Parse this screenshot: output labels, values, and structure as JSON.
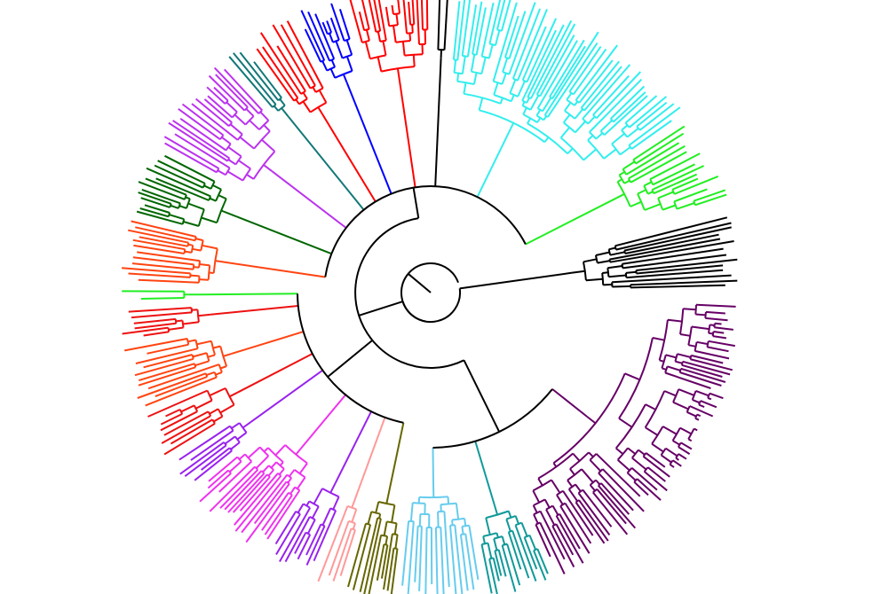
{
  "diagram": {
    "type": "circular-phylogenetic-tree",
    "labels_shown": false,
    "background": "#ffffff",
    "clades": [
      {
        "name": "root-stub",
        "color": "#000000"
      },
      {
        "name": "clade-red-top",
        "color": "#ff0000"
      },
      {
        "name": "clade-blue",
        "color": "#0000ff"
      },
      {
        "name": "clade-cyan",
        "color": "#33eeee"
      },
      {
        "name": "clade-bright-green",
        "color": "#22ee22"
      },
      {
        "name": "clade-black-outgroup",
        "color": "#000000"
      },
      {
        "name": "clade-dark-purple",
        "color": "#660066"
      },
      {
        "name": "clade-teal",
        "color": "#119999"
      },
      {
        "name": "clade-light-blue",
        "color": "#66ccee"
      },
      {
        "name": "clade-olive",
        "color": "#666600"
      },
      {
        "name": "clade-pink",
        "color": "#ff9999"
      },
      {
        "name": "clade-violet",
        "color": "#9922ee"
      },
      {
        "name": "clade-magenta",
        "color": "#ee33ee"
      },
      {
        "name": "clade-red-left",
        "color": "#ee1111"
      },
      {
        "name": "clade-orange-red",
        "color": "#ff4411"
      },
      {
        "name": "clade-dark-green",
        "color": "#006600"
      },
      {
        "name": "clade-orchid",
        "color": "#bb33ee"
      },
      {
        "name": "clade-teal-small",
        "color": "#117777"
      }
    ]
  }
}
